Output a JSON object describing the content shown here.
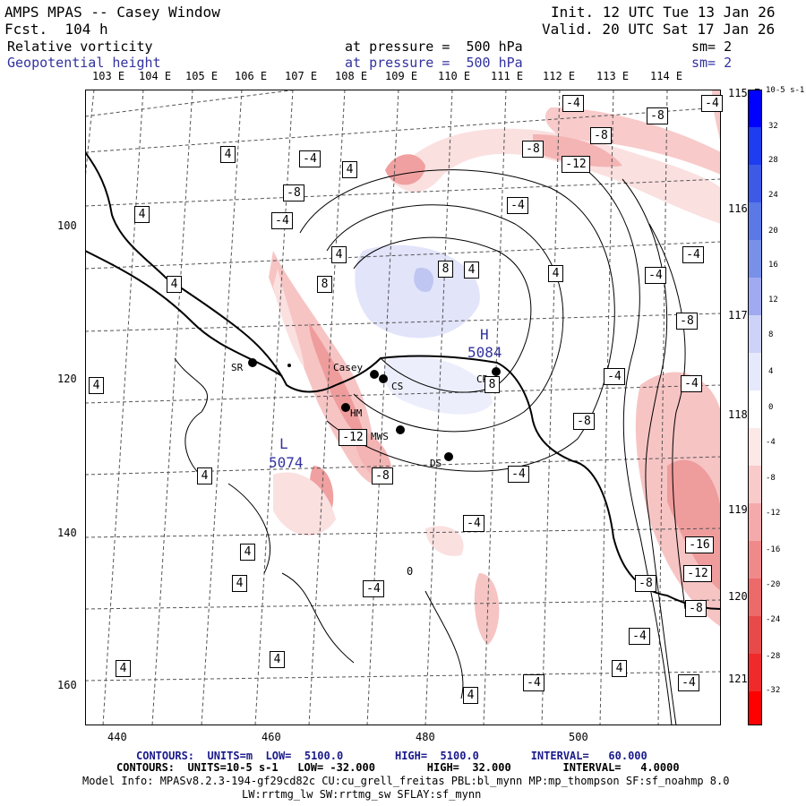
{
  "header": {
    "title": "AMPS MPAS -- Casey Window",
    "forecast": "Fcst.  104 h",
    "init": "Init. 12 UTC Tue 13 Jan 26",
    "valid": "Valid. 20 UTC Sat 17 Jan 26",
    "field1_name": "Relative vorticity",
    "field1_pressure": "at pressure =  500 hPa",
    "field1_smooth": "sm= 2",
    "field2_name": "Geopotential height",
    "field2_pressure": "at pressure =  500 hPa",
    "field2_smooth": "sm= 2"
  },
  "lon_labels_top": [
    "103 E",
    "104 E",
    "105 E",
    "106 E",
    "107 E",
    "108 E",
    "109 E",
    "110 E",
    "111 E",
    "112 E",
    "113 E",
    "114 E"
  ],
  "lon_labels_right": [
    "115 E",
    "116 E",
    "117 E",
    "118 E",
    "119 E",
    "120 E",
    "121 E"
  ],
  "x_axis_ticks": [
    "440",
    "460",
    "480",
    "500"
  ],
  "y_axis_ticks": [
    "100",
    "120",
    "140",
    "160"
  ],
  "stations": [
    "SR",
    "Casey",
    "CS",
    "HM",
    "MWS",
    "DS",
    "CR"
  ],
  "highs_lows": {
    "high_label": "H",
    "high_value": "5084",
    "low_label": "L",
    "low_value": "5074"
  },
  "contour_labels": [
    "4",
    "-4",
    "-8",
    "-12",
    "-16",
    "8",
    "0"
  ],
  "colorbar": {
    "units": "10-5 s-1",
    "ticks": [
      "32",
      "28",
      "24",
      "20",
      "16",
      "12",
      "8",
      "4",
      "0",
      "-4",
      "-8",
      "-12",
      "-16",
      "-20",
      "-24",
      "-28",
      "-32"
    ]
  },
  "footer": {
    "line1": "CONTOURS:  UNITS=m  LOW=  5100.0        HIGH=  5100.0        INTERVAL=   60.000",
    "line2": "CONTOURS:  UNITS=10-5 s-1   LOW= -32.000        HIGH=  32.000        INTERVAL=   4.0000",
    "line3": "Model Info: MPASv8.2.3-194-gf29cd82c CU:cu_grell_freitas PBL:bl_mynn MP:mp_thompson SF:sf_noahmp 8.0",
    "line4": "LW:rrtmg_lw SW:rrtmg_sw SFLAY:sf_mynn"
  }
}
